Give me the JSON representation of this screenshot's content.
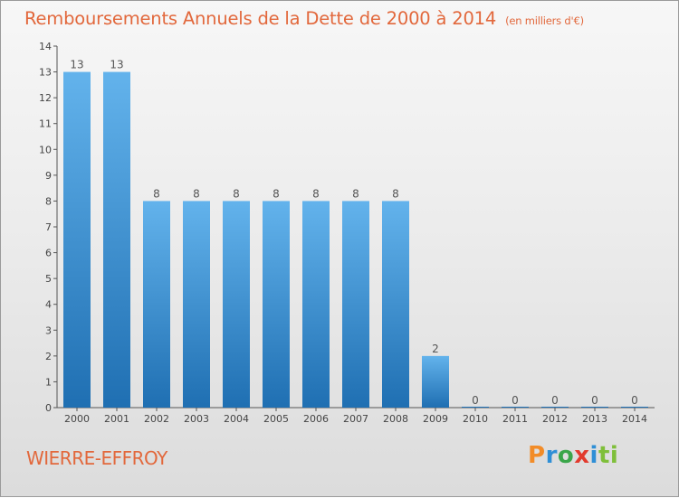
{
  "header": {
    "title": "Remboursements Annuels de la Dette de 2000 à 2014",
    "unit": "(en milliers d'€)"
  },
  "footer": {
    "town": "WIERRE-EFFROY",
    "brand": "Proxiti"
  },
  "colors": {
    "title": "#e2683c",
    "bar_top": "#63b3ec",
    "bar_bottom": "#1f6fb2",
    "axis": "#555555"
  },
  "chart_data": {
    "type": "bar",
    "title": "Remboursements Annuels de la Dette de 2000 à 2014",
    "xlabel": "",
    "ylabel": "",
    "categories": [
      "2000",
      "2001",
      "2002",
      "2003",
      "2004",
      "2005",
      "2006",
      "2007",
      "2008",
      "2009",
      "2010",
      "2011",
      "2012",
      "2013",
      "2014"
    ],
    "values": [
      13,
      13,
      8,
      8,
      8,
      8,
      8,
      8,
      8,
      2,
      0,
      0,
      0,
      0,
      0
    ],
    "ylim": [
      0,
      14
    ],
    "yticks": [
      0,
      1,
      2,
      3,
      4,
      5,
      6,
      7,
      8,
      9,
      10,
      11,
      12,
      13,
      14
    ],
    "grid": false,
    "legend": "none"
  }
}
